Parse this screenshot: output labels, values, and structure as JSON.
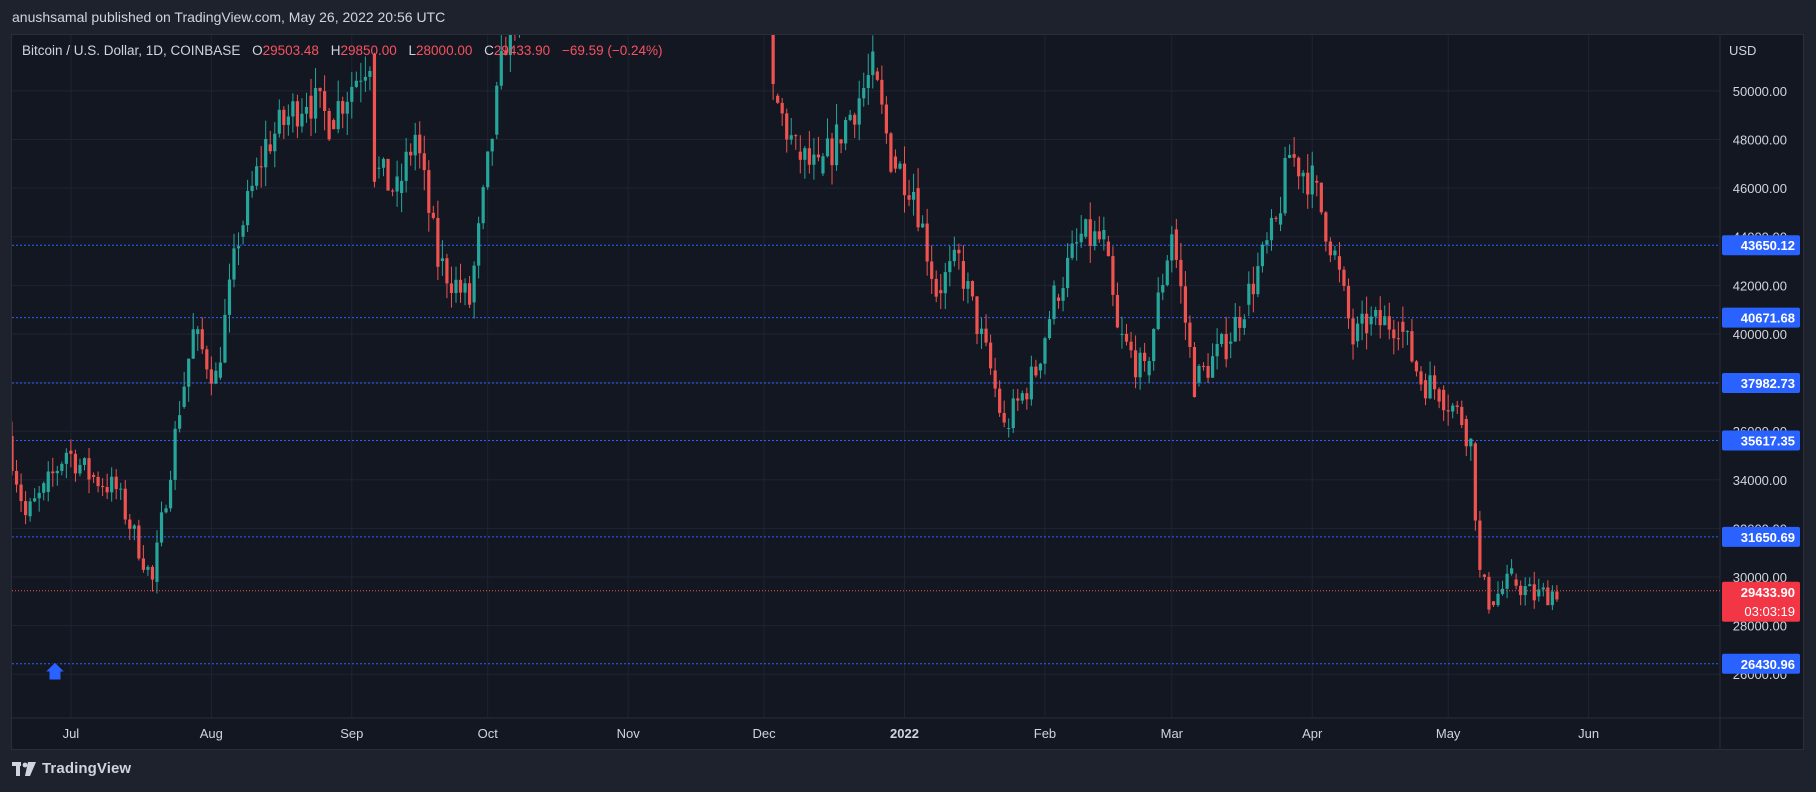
{
  "header": {
    "publish_line": "anushsamal published on TradingView.com, May 26, 2022 20:56 UTC"
  },
  "legend": {
    "symbol": "Bitcoin / U.S. Dollar, 1D, COINBASE",
    "o_label": "O",
    "o_value": "29503.48",
    "h_label": "H",
    "h_value": "29850.00",
    "l_label": "L",
    "l_value": "28000.00",
    "c_label": "C",
    "c_value": "29433.90",
    "change": "−69.59 (−0.24%)"
  },
  "currency": "USD",
  "footer": {
    "brand": "TradingView"
  },
  "colors": {
    "up": "#26a69a",
    "down": "#ef5350",
    "background": "#131722",
    "level_line": "#2962ff",
    "price_tag": "#f23645"
  },
  "chart_data": {
    "type": "candlestick",
    "symbol": "BTCUSD",
    "ylim": [
      24200,
      52300
    ],
    "y_ticks": [
      26000,
      28000,
      30000,
      32000,
      34000,
      36000,
      38000,
      40000,
      42000,
      44000,
      46000,
      48000,
      50000
    ],
    "y_tick_labels": [
      "26000.00",
      "28000.00",
      "30000.00",
      "32000.00",
      "34000.00",
      "36000.00",
      "38000.00",
      "40000.00",
      "42000.00",
      "44000.00",
      "46000.00",
      "48000.00",
      "50000.00"
    ],
    "x_labels": [
      {
        "label": "Jul",
        "date": "2021-07-01"
      },
      {
        "label": "Aug",
        "date": "2021-08-01"
      },
      {
        "label": "Sep",
        "date": "2021-09-01"
      },
      {
        "label": "Oct",
        "date": "2021-10-01"
      },
      {
        "label": "Nov",
        "date": "2021-11-01"
      },
      {
        "label": "Dec",
        "date": "2021-12-01"
      },
      {
        "label": "2022",
        "date": "2022-01-01"
      },
      {
        "label": "Feb",
        "date": "2022-02-01"
      },
      {
        "label": "Mar",
        "date": "2022-03-01"
      },
      {
        "label": "Apr",
        "date": "2022-04-01"
      },
      {
        "label": "May",
        "date": "2022-05-01"
      },
      {
        "label": "Jun",
        "date": "2022-06-01"
      }
    ],
    "x_range": [
      "2021-06-18",
      "2022-06-30"
    ],
    "horizontal_levels": [
      "43650.12",
      "40671.68",
      "37982.73",
      "35617.35",
      "31650.69",
      "26430.96"
    ],
    "current_price": "29433.90",
    "countdown": "03:03:19",
    "anchors": [
      {
        "date": "2021-06-18",
        "close": 35800
      },
      {
        "date": "2021-06-22",
        "close": 32500
      },
      {
        "date": "2021-06-26",
        "close": 33500
      },
      {
        "date": "2021-07-01",
        "close": 35200
      },
      {
        "date": "2021-07-06",
        "close": 34200
      },
      {
        "date": "2021-07-12",
        "close": 33600
      },
      {
        "date": "2021-07-20",
        "close": 29800
      },
      {
        "date": "2021-07-26",
        "close": 37000
      },
      {
        "date": "2021-07-29",
        "close": 40000
      },
      {
        "date": "2021-08-03",
        "close": 38200
      },
      {
        "date": "2021-08-08",
        "close": 44000
      },
      {
        "date": "2021-08-14",
        "close": 47800
      },
      {
        "date": "2021-08-23",
        "close": 49800
      },
      {
        "date": "2021-08-28",
        "close": 48800
      },
      {
        "date": "2021-09-06",
        "close": 51500
      },
      {
        "date": "2021-09-07",
        "close": 46800
      },
      {
        "date": "2021-09-12",
        "close": 45800
      },
      {
        "date": "2021-09-16",
        "close": 48200
      },
      {
        "date": "2021-09-21",
        "close": 43000
      },
      {
        "date": "2021-09-28",
        "close": 41300
      },
      {
        "date": "2021-10-03",
        "close": 48200
      },
      {
        "date": "2021-10-07",
        "close": 53500
      },
      {
        "date": "2021-12-04",
        "close": 49800
      },
      {
        "date": "2021-12-09",
        "close": 47500
      },
      {
        "date": "2021-12-14",
        "close": 46600
      },
      {
        "date": "2021-12-18",
        "close": 48000
      },
      {
        "date": "2021-12-26",
        "close": 50800
      },
      {
        "date": "2021-12-30",
        "close": 47300
      },
      {
        "date": "2022-01-04",
        "close": 46000
      },
      {
        "date": "2022-01-09",
        "close": 41800
      },
      {
        "date": "2022-01-14",
        "close": 43000
      },
      {
        "date": "2022-01-21",
        "close": 38500
      },
      {
        "date": "2022-01-24",
        "close": 36100
      },
      {
        "date": "2022-01-31",
        "close": 38500
      },
      {
        "date": "2022-02-04",
        "close": 41500
      },
      {
        "date": "2022-02-10",
        "close": 44000
      },
      {
        "date": "2022-02-15",
        "close": 43800
      },
      {
        "date": "2022-02-18",
        "close": 40000
      },
      {
        "date": "2022-02-24",
        "close": 38300
      },
      {
        "date": "2022-03-02",
        "close": 44300
      },
      {
        "date": "2022-03-07",
        "close": 38000
      },
      {
        "date": "2022-03-14",
        "close": 39600
      },
      {
        "date": "2022-03-18",
        "close": 41200
      },
      {
        "date": "2022-03-25",
        "close": 44500
      },
      {
        "date": "2022-03-28",
        "close": 47400
      },
      {
        "date": "2022-04-02",
        "close": 46300
      },
      {
        "date": "2022-04-07",
        "close": 43200
      },
      {
        "date": "2022-04-11",
        "close": 39700
      },
      {
        "date": "2022-04-14",
        "close": 40400
      },
      {
        "date": "2022-04-21",
        "close": 40500
      },
      {
        "date": "2022-04-26",
        "close": 38100
      },
      {
        "date": "2022-04-30",
        "close": 37700
      },
      {
        "date": "2022-05-05",
        "close": 36500
      },
      {
        "date": "2022-05-07",
        "close": 35500
      },
      {
        "date": "2022-05-09",
        "close": 30100
      },
      {
        "date": "2022-05-11",
        "close": 29000
      },
      {
        "date": "2022-05-13",
        "close": 29300
      },
      {
        "date": "2022-05-16",
        "close": 29900
      },
      {
        "date": "2022-05-21",
        "close": 29200
      },
      {
        "date": "2022-05-26",
        "close": 29434
      }
    ]
  }
}
